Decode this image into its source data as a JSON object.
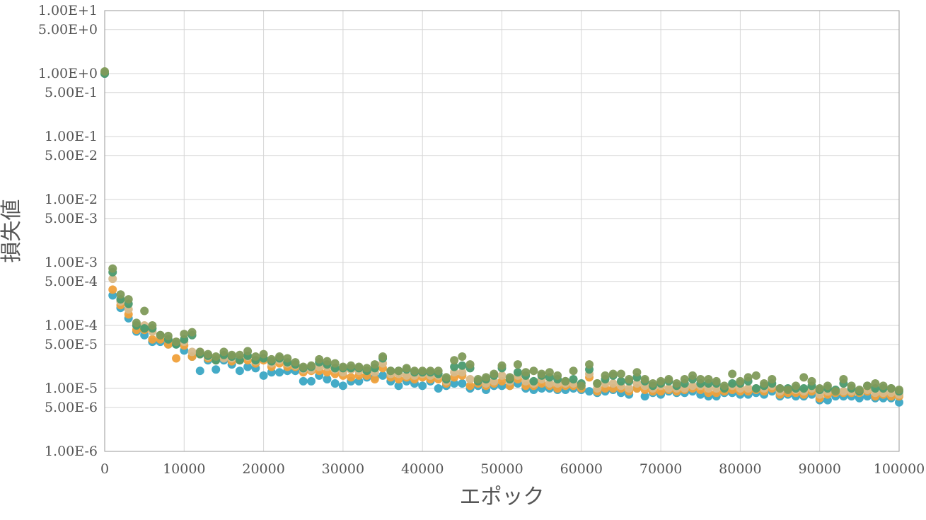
{
  "chart_data": {
    "type": "scatter",
    "title": "",
    "xlabel": "エポック",
    "ylabel": "損失値",
    "x_scale": "linear",
    "y_scale": "log",
    "xlim": [
      0,
      100000
    ],
    "ylim": [
      1e-06,
      10
    ],
    "grid": true,
    "x_ticks": [
      0,
      10000,
      20000,
      30000,
      40000,
      50000,
      60000,
      70000,
      80000,
      90000,
      100000
    ],
    "x_tick_labels": [
      "0",
      "10000",
      "20000",
      "30000",
      "40000",
      "50000",
      "60000",
      "70000",
      "80000",
      "90000",
      "100000"
    ],
    "y_ticks": [
      10,
      5,
      1,
      0.5,
      0.1,
      0.05,
      0.01,
      0.005,
      0.001,
      0.0005,
      0.0001,
      5e-05,
      1e-05,
      5e-06,
      1e-06
    ],
    "y_tick_labels": [
      "1.00E+1",
      "5.00E+0",
      "1.00E+0",
      "5.00E-1",
      "1.00E-1",
      "5.00E-2",
      "1.00E-2",
      "5.00E-3",
      "1.00E-3",
      "5.00E-4",
      "1.00E-4",
      "5.00E-5",
      "1.00E-5",
      "5.00E-6",
      "1.00E-6"
    ],
    "colors": [
      "#3aa6c4",
      "#f0a03a",
      "#d6b98a",
      "#4a9a6e",
      "#7f9a5a"
    ],
    "x": [
      0,
      1000,
      2000,
      3000,
      4000,
      5000,
      6000,
      7000,
      8000,
      9000,
      10000,
      11000,
      12000,
      13000,
      14000,
      15000,
      16000,
      17000,
      18000,
      19000,
      20000,
      21000,
      22000,
      23000,
      24000,
      25000,
      26000,
      27000,
      28000,
      29000,
      30000,
      31000,
      32000,
      33000,
      34000,
      35000,
      36000,
      37000,
      38000,
      39000,
      40000,
      41000,
      42000,
      43000,
      44000,
      45000,
      46000,
      47000,
      48000,
      49000,
      50000,
      51000,
      52000,
      53000,
      54000,
      55000,
      56000,
      57000,
      58000,
      59000,
      60000,
      61000,
      62000,
      63000,
      64000,
      65000,
      66000,
      67000,
      68000,
      69000,
      70000,
      71000,
      72000,
      73000,
      74000,
      75000,
      76000,
      77000,
      78000,
      79000,
      80000,
      81000,
      82000,
      83000,
      84000,
      85000,
      86000,
      87000,
      88000,
      89000,
      90000,
      91000,
      92000,
      93000,
      94000,
      95000,
      96000,
      97000,
      98000,
      99000,
      100000
    ],
    "series": [
      {
        "values": [
          1.0,
          0.0003,
          0.00019,
          0.00013,
          8e-05,
          7e-05,
          5.5e-05,
          5.5e-05,
          5e-05,
          5e-05,
          4e-05,
          3.2e-05,
          1.9e-05,
          2.8e-05,
          2e-05,
          2.8e-05,
          2.4e-05,
          1.9e-05,
          2.2e-05,
          2.1e-05,
          1.6e-05,
          1.8e-05,
          1.8e-05,
          1.9e-05,
          1.9e-05,
          1.3e-05,
          1.3e-05,
          1.6e-05,
          1.4e-05,
          1.2e-05,
          1.1e-05,
          1.3e-05,
          1.3e-05,
          1.5e-05,
          1.5e-05,
          1.6e-05,
          1.3e-05,
          1.1e-05,
          1.3e-05,
          1.2e-05,
          1.1e-05,
          1.3e-05,
          1e-05,
          1.1e-05,
          1.2e-05,
          1.2e-05,
          1e-05,
          1.1e-05,
          9.5e-06,
          1.1e-05,
          1.1e-05,
          1.1e-05,
          1.2e-05,
          1e-05,
          9.5e-06,
          1e-05,
          1e-05,
          9.5e-06,
          9.5e-06,
          1e-05,
          9.5e-06,
          9e-06,
          8.5e-06,
          9e-06,
          9.5e-06,
          8.5e-06,
          8e-06,
          1e-05,
          7.5e-06,
          8.5e-06,
          8e-06,
          9e-06,
          8.5e-06,
          8.5e-06,
          9e-06,
          8e-06,
          7.5e-06,
          7.5e-06,
          8.5e-06,
          8.5e-06,
          8e-06,
          8e-06,
          8.5e-06,
          8e-06,
          9e-06,
          7.5e-06,
          8e-06,
          7.5e-06,
          7.5e-06,
          8e-06,
          6.5e-06,
          6.5e-06,
          7.5e-06,
          7.5e-06,
          7.5e-06,
          7e-06,
          7.5e-06,
          7e-06,
          7e-06,
          7e-06,
          6e-06
        ]
      },
      {
        "values": [
          1.02,
          0.00037,
          0.00021,
          0.00015,
          8.5e-05,
          8.5e-05,
          6e-05,
          6e-05,
          5e-05,
          3e-05,
          4.8e-05,
          3.2e-05,
          3.5e-05,
          3e-05,
          2.8e-05,
          3.2e-05,
          2.7e-05,
          2.8e-05,
          2.8e-05,
          2.5e-05,
          2.8e-05,
          2.2e-05,
          2.5e-05,
          2.2e-05,
          2.2e-05,
          1.8e-05,
          1.9e-05,
          1.9e-05,
          1.8e-05,
          1.7e-05,
          1.6e-05,
          1.5e-05,
          1.6e-05,
          1.6e-05,
          1.4e-05,
          2.1e-05,
          1.5e-05,
          1.4e-05,
          1.5e-05,
          1.4e-05,
          1.5e-05,
          1.4e-05,
          1.4e-05,
          1.2e-05,
          1.5e-05,
          1.6e-05,
          1.1e-05,
          1.2e-05,
          1.1e-05,
          1.2e-05,
          1.3e-05,
          1.1e-05,
          1.4e-05,
          1.1e-05,
          1.1e-05,
          1.2e-05,
          1.1e-05,
          1e-05,
          1.1e-05,
          1.1e-05,
          1e-05,
          1.5e-05,
          9e-06,
          1e-05,
          1e-05,
          1e-05,
          9e-06,
          1e-05,
          9.5e-06,
          9e-06,
          9e-06,
          9.5e-06,
          9e-06,
          9.5e-06,
          1e-05,
          9.5e-06,
          8.5e-06,
          8.5e-06,
          9e-06,
          9.5e-06,
          9e-06,
          9e-06,
          9.5e-06,
          9e-06,
          1e-05,
          8e-06,
          8.5e-06,
          8.5e-06,
          8e-06,
          9e-06,
          7e-06,
          8e-06,
          8.5e-06,
          8.5e-06,
          8.5e-06,
          8.5e-06,
          9e-06,
          7.5e-06,
          8e-06,
          7.5e-06,
          7.5e-06
        ]
      },
      {
        "values": [
          1.05,
          0.00055,
          0.00024,
          0.00018,
          0.0001,
          0.0001,
          8e-05,
          7e-05,
          6e-05,
          5.5e-05,
          5.5e-05,
          3.8e-05,
          3.8e-05,
          3.2e-05,
          3e-05,
          3e-05,
          3e-05,
          3e-05,
          3.2e-05,
          2.7e-05,
          3e-05,
          2.5e-05,
          2.8e-05,
          2.5e-05,
          2.3e-05,
          2e-05,
          2e-05,
          2.2e-05,
          2.2e-05,
          2e-05,
          1.8e-05,
          2e-05,
          1.9e-05,
          1.9e-05,
          1.8e-05,
          2.5e-05,
          1.7e-05,
          1.7e-05,
          1.6e-05,
          1.6e-05,
          1.7e-05,
          1.6e-05,
          1.6e-05,
          1.3e-05,
          1.8e-05,
          1.8e-05,
          1.4e-05,
          1.3e-05,
          1.2e-05,
          1.3e-05,
          1.6e-05,
          1.3e-05,
          1.6e-05,
          1.3e-05,
          1.2e-05,
          1.4e-05,
          1.2e-05,
          1.2e-05,
          1.2e-05,
          1.2e-05,
          1.1e-05,
          1.7e-05,
          1e-05,
          1.2e-05,
          1.2e-05,
          1.1e-05,
          1e-05,
          1.2e-05,
          1.1e-05,
          1e-05,
          1.1e-05,
          1e-05,
          1e-05,
          1e-05,
          1.1e-05,
          1.1e-05,
          1e-05,
          1e-05,
          1e-05,
          1.1e-05,
          1e-05,
          1e-05,
          1e-05,
          1e-05,
          1.1e-05,
          9e-06,
          9.5e-06,
          9.5e-06,
          9e-06,
          1e-05,
          8e-06,
          9e-06,
          9e-06,
          9e-06,
          9e-06,
          9e-06,
          9.5e-06,
          8.5e-06,
          8.5e-06,
          8.5e-06,
          8e-06
        ]
      },
      {
        "values": [
          1.0,
          0.0007,
          0.00026,
          0.00022,
          0.0001,
          9e-05,
          9e-05,
          7e-05,
          6e-05,
          5e-05,
          6e-05,
          7e-05,
          3.5e-05,
          3.3e-05,
          2.8e-05,
          3.4e-05,
          3.2e-05,
          2.8e-05,
          3.3e-05,
          2.8e-05,
          3e-05,
          2.7e-05,
          3e-05,
          2.6e-05,
          2.4e-05,
          2.1e-05,
          2.2e-05,
          2.6e-05,
          2.4e-05,
          2.1e-05,
          2.1e-05,
          2.1e-05,
          2.1e-05,
          1.9e-05,
          2.1e-05,
          3e-05,
          1.9e-05,
          1.9e-05,
          2e-05,
          1.8e-05,
          1.8e-05,
          1.8e-05,
          1.7e-05,
          1.4e-05,
          2.2e-05,
          2.3e-05,
          2.1e-05,
          1.3e-05,
          1.4e-05,
          1.6e-05,
          2.1e-05,
          1.4e-05,
          1.8e-05,
          1.6e-05,
          1.3e-05,
          1.6e-05,
          1.5e-05,
          1.4e-05,
          1.3e-05,
          1.4e-05,
          1.2e-05,
          2e-05,
          1.2e-05,
          1.4e-05,
          1.6e-05,
          1.3e-05,
          1.3e-05,
          1.5e-05,
          1.3e-05,
          1.1e-05,
          1.2e-05,
          1.3e-05,
          1.1e-05,
          1.2e-05,
          1.4e-05,
          1.2e-05,
          1.2e-05,
          1.2e-05,
          1e-05,
          1.2e-05,
          1.2e-05,
          1.3e-05,
          1e-05,
          1.1e-05,
          1.2e-05,
          1e-05,
          1e-05,
          1e-05,
          1e-05,
          1.1e-05,
          9.5e-06,
          1e-05,
          9.5e-06,
          1.2e-05,
          1e-05,
          9e-06,
          1.1e-05,
          1e-05,
          1e-05,
          1e-05,
          9e-06
        ]
      },
      {
        "values": [
          1.08,
          0.0008,
          0.00031,
          0.00026,
          0.00011,
          0.00017,
          0.0001,
          7e-05,
          6.8e-05,
          5.5e-05,
          7.3e-05,
          7.8e-05,
          3.8e-05,
          3.5e-05,
          3.2e-05,
          3.8e-05,
          3.4e-05,
          3.4e-05,
          3.9e-05,
          3.2e-05,
          3.5e-05,
          2.9e-05,
          3.2e-05,
          3e-05,
          2.6e-05,
          2.2e-05,
          2.3e-05,
          2.9e-05,
          2.7e-05,
          2.5e-05,
          2.2e-05,
          2.3e-05,
          2.2e-05,
          2.1e-05,
          2.4e-05,
          3.2e-05,
          1.9e-05,
          1.9e-05,
          2.1e-05,
          1.9e-05,
          1.9e-05,
          1.9e-05,
          1.9e-05,
          1.5e-05,
          2.8e-05,
          3.2e-05,
          2.4e-05,
          1.4e-05,
          1.5e-05,
          1.7e-05,
          2.3e-05,
          1.5e-05,
          2.4e-05,
          1.8e-05,
          1.9e-05,
          1.7e-05,
          1.8e-05,
          1.6e-05,
          1.3e-05,
          1.9e-05,
          1.1e-05,
          2.4e-05,
          1.2e-05,
          1.6e-05,
          1.7e-05,
          1.7e-05,
          1.4e-05,
          1.8e-05,
          1.4e-05,
          1.2e-05,
          1.3e-05,
          1.4e-05,
          1.2e-05,
          1.4e-05,
          1.6e-05,
          1.4e-05,
          1.4e-05,
          1.3e-05,
          1.1e-05,
          1.7e-05,
          1.3e-05,
          1.5e-05,
          1.6e-05,
          1.2e-05,
          1.4e-05,
          1e-05,
          9.5e-06,
          1.1e-05,
          1.5e-05,
          1.3e-05,
          1e-05,
          1.1e-05,
          9e-06,
          1.4e-05,
          1.1e-05,
          9.5e-06,
          1.1e-05,
          1.2e-05,
          1.1e-05,
          1e-05,
          9.5e-06
        ]
      }
    ]
  }
}
